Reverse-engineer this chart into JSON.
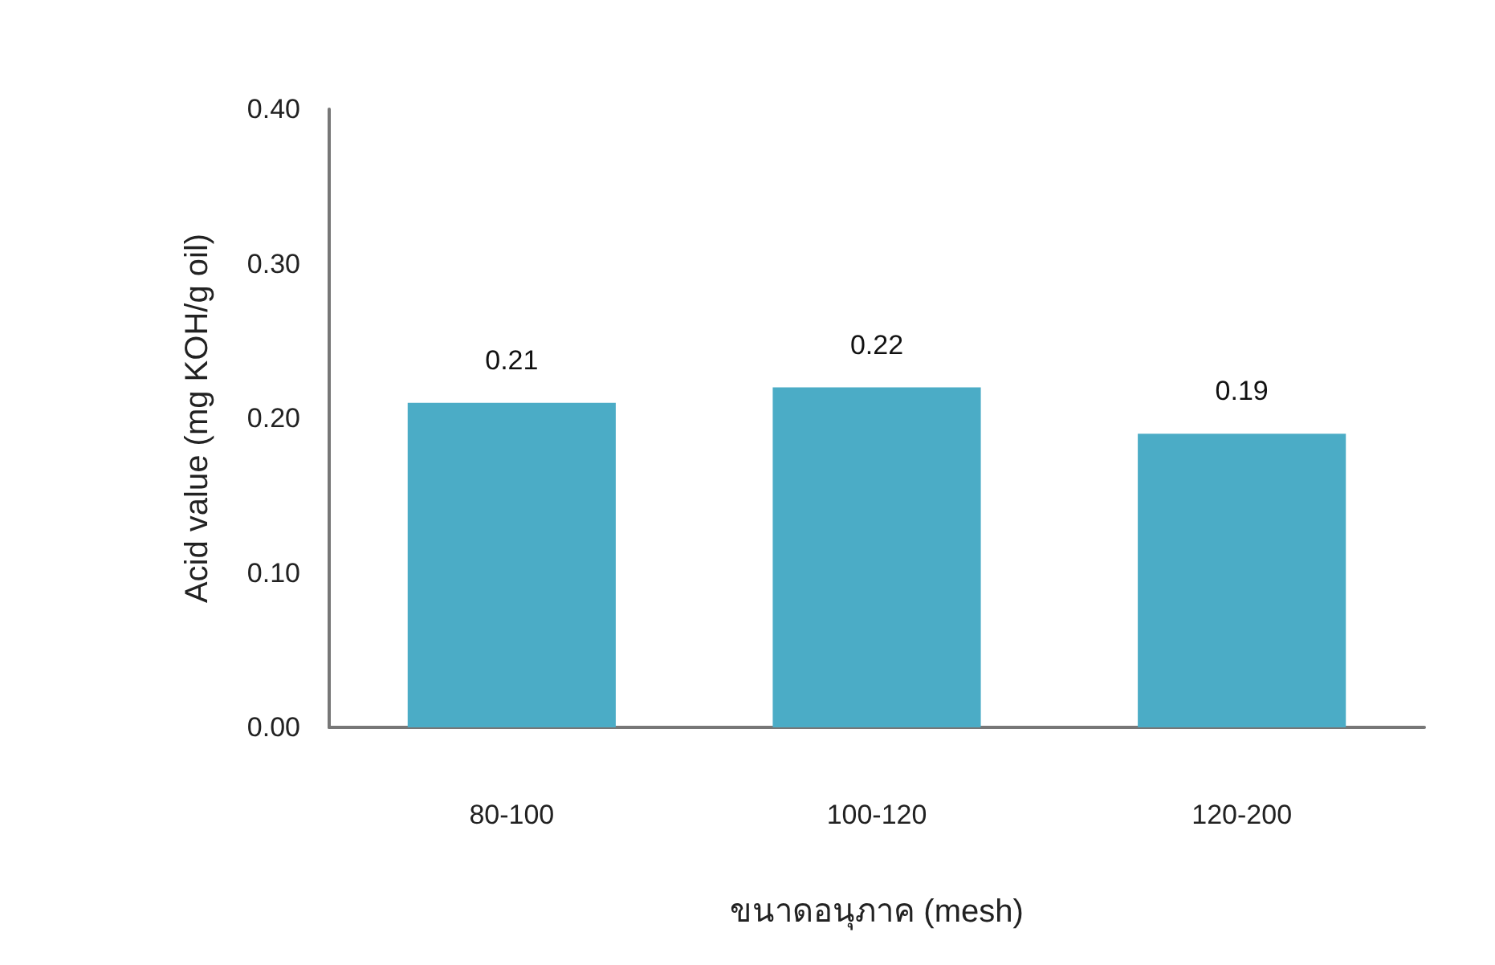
{
  "chart_data": {
    "type": "bar",
    "xlabel": "ขนาดอนุภาค (mesh)",
    "ylabel": "Acid value (mg KOH/g oil)",
    "categories": [
      "80-100",
      "100-120",
      "120-200"
    ],
    "values": [
      0.21,
      0.22,
      0.19
    ],
    "color": "#4bacc6",
    "ylim": [
      0,
      0.4
    ],
    "yticks": [
      {
        "value": 0,
        "label": "0.00"
      },
      {
        "value": 0.1,
        "label": "0.10"
      },
      {
        "value": 0.2,
        "label": "0.20"
      },
      {
        "value": 0.3,
        "label": "0.30"
      },
      {
        "value": 0.4,
        "label": "0.40"
      }
    ],
    "data_labels": true,
    "grid": false
  }
}
